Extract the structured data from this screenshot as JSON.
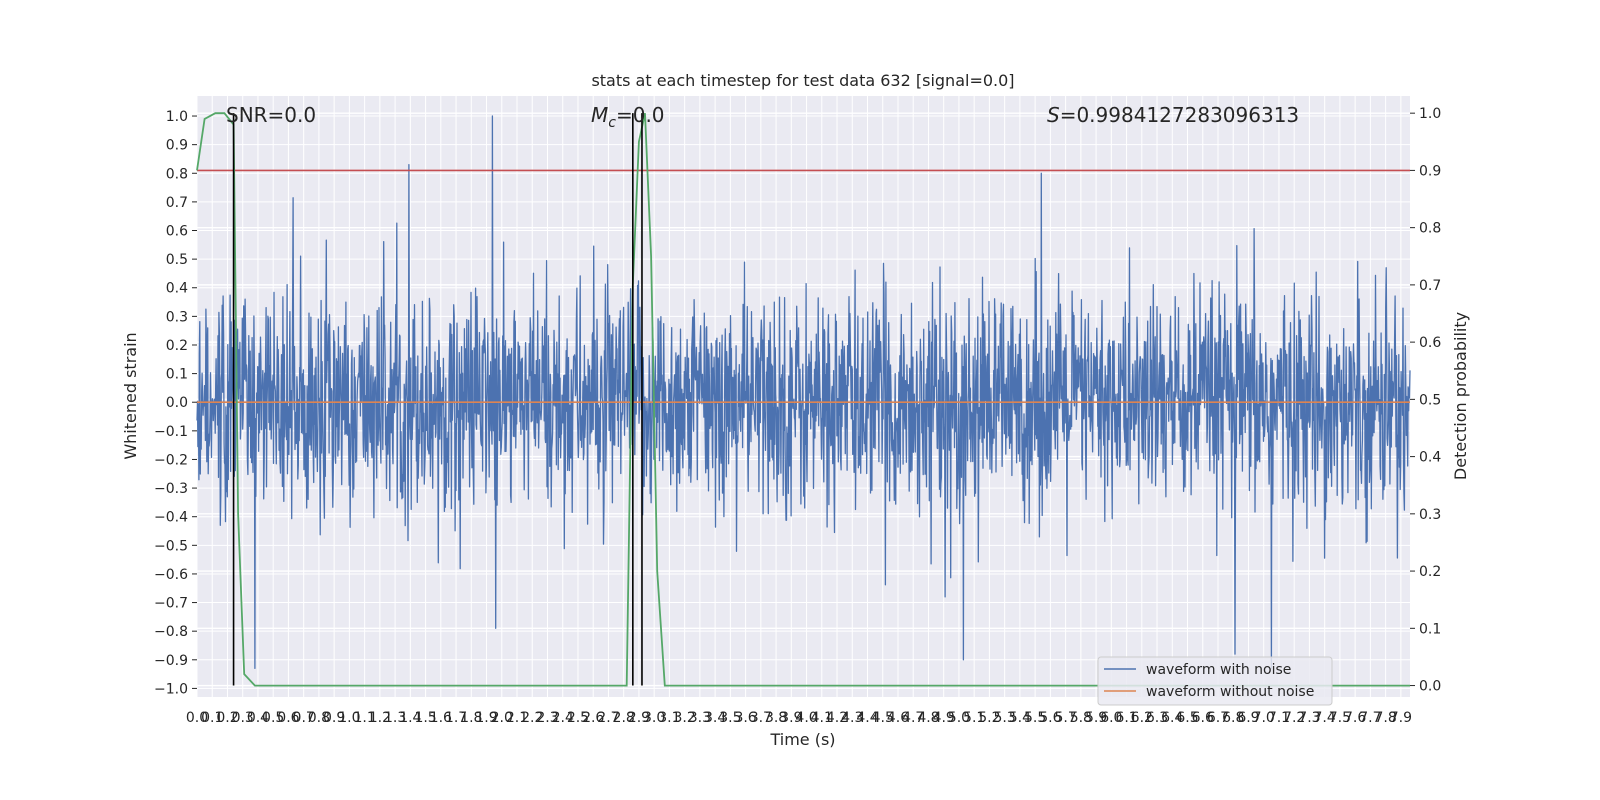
{
  "chart_data": {
    "type": "line",
    "title": "stats at each timestep for test data 632 [signal=0.0]",
    "xlabel": "Time (s)",
    "ylabel": "Whitened strain",
    "y2label": "Detection probability",
    "xlim": [
      0.0,
      7.96
    ],
    "ylim": [
      -1.03,
      1.07
    ],
    "y2lim": [
      -0.02,
      1.03
    ],
    "x_ticks": [
      "0.0",
      "0.1",
      "0.2",
      "0.3",
      "0.4",
      "0.5",
      "0.6",
      "0.7",
      "0.8",
      "0.9",
      "1.0",
      "1.1",
      "1.2",
      "1.3",
      "1.4",
      "1.5",
      "1.6",
      "1.7",
      "1.8",
      "1.9",
      "2.0",
      "2.1",
      "2.2",
      "2.3",
      "2.4",
      "2.5",
      "2.6",
      "2.7",
      "2.8",
      "2.9",
      "3.0",
      "3.1",
      "3.2",
      "3.3",
      "3.4",
      "3.5",
      "3.6",
      "3.7",
      "3.8",
      "3.9",
      "4.0",
      "4.1",
      "4.2",
      "4.3",
      "4.4",
      "4.5",
      "4.6",
      "4.7",
      "4.8",
      "4.9",
      "5.0",
      "5.1",
      "5.2",
      "5.3",
      "5.4",
      "5.5",
      "5.6",
      "5.7",
      "5.8",
      "5.9",
      "6.0",
      "6.1",
      "6.2",
      "6.3",
      "6.4",
      "6.5",
      "6.6",
      "6.7",
      "6.8",
      "6.9",
      "7.0",
      "7.1",
      "7.2",
      "7.3",
      "7.4",
      "7.5",
      "7.6",
      "7.7",
      "7.8",
      "7.9"
    ],
    "y_ticks": [
      "1.0",
      "0.9",
      "0.8",
      "0.7",
      "0.6",
      "0.5",
      "0.4",
      "0.3",
      "0.2",
      "0.1",
      "0.0",
      "−0.1",
      "−0.2",
      "−0.3",
      "−0.4",
      "−0.5",
      "−0.6",
      "−0.7",
      "−0.8",
      "−0.9",
      "−1.0"
    ],
    "y2_ticks": [
      "1.0",
      "0.9",
      "0.8",
      "0.7",
      "0.6",
      "0.5",
      "0.4",
      "0.3",
      "0.2",
      "0.1",
      "0.0"
    ],
    "annotations": {
      "snr": "SNR=0.0",
      "mc_symbol": "M",
      "mc_sub": "c",
      "mc_value": "=0.0",
      "s_symbol": "S",
      "s_value": "=0.9984127283096313"
    },
    "series": [
      {
        "name": "waveform with noise",
        "color": "#4c72b0",
        "amplitude_typical": 0.42,
        "extreme_peaks": [
          {
            "x": 1.94,
            "y": 1.0
          },
          {
            "x": 1.39,
            "y": 0.83
          },
          {
            "x": 5.54,
            "y": 0.8
          },
          {
            "x": 5.03,
            "y": -0.9
          },
          {
            "x": 0.38,
            "y": -0.93
          },
          {
            "x": 1.96,
            "y": -0.79
          },
          {
            "x": 7.05,
            "y": -0.93
          },
          {
            "x": 6.81,
            "y": -0.88
          }
        ]
      },
      {
        "name": "waveform without noise",
        "color": "#dd8452",
        "constant": 0.0
      },
      {
        "name": "",
        "color": "#55a868",
        "axis": "right",
        "x": [
          0.0,
          0.05,
          0.12,
          0.18,
          0.24,
          0.27,
          0.31,
          0.38,
          2.82,
          2.86,
          2.9,
          2.94,
          2.98,
          3.02,
          3.07,
          7.96
        ],
        "y": [
          0.9,
          0.99,
          1.0,
          1.0,
          0.98,
          0.3,
          0.02,
          0.0,
          0.0,
          0.7,
          0.95,
          1.0,
          0.75,
          0.2,
          0.0,
          0.0
        ]
      }
    ],
    "threshold_line": {
      "axis": "right",
      "y": 0.9,
      "color": "#c44e52"
    },
    "vertical_lines": [
      {
        "x": 0.24,
        "color": "#000000"
      },
      {
        "x": 2.86,
        "color": "#000000"
      },
      {
        "x": 2.92,
        "color": "#000000"
      }
    ],
    "legend": {
      "placement": "lower-right",
      "entries": [
        "waveform with noise",
        "waveform without noise"
      ]
    }
  }
}
